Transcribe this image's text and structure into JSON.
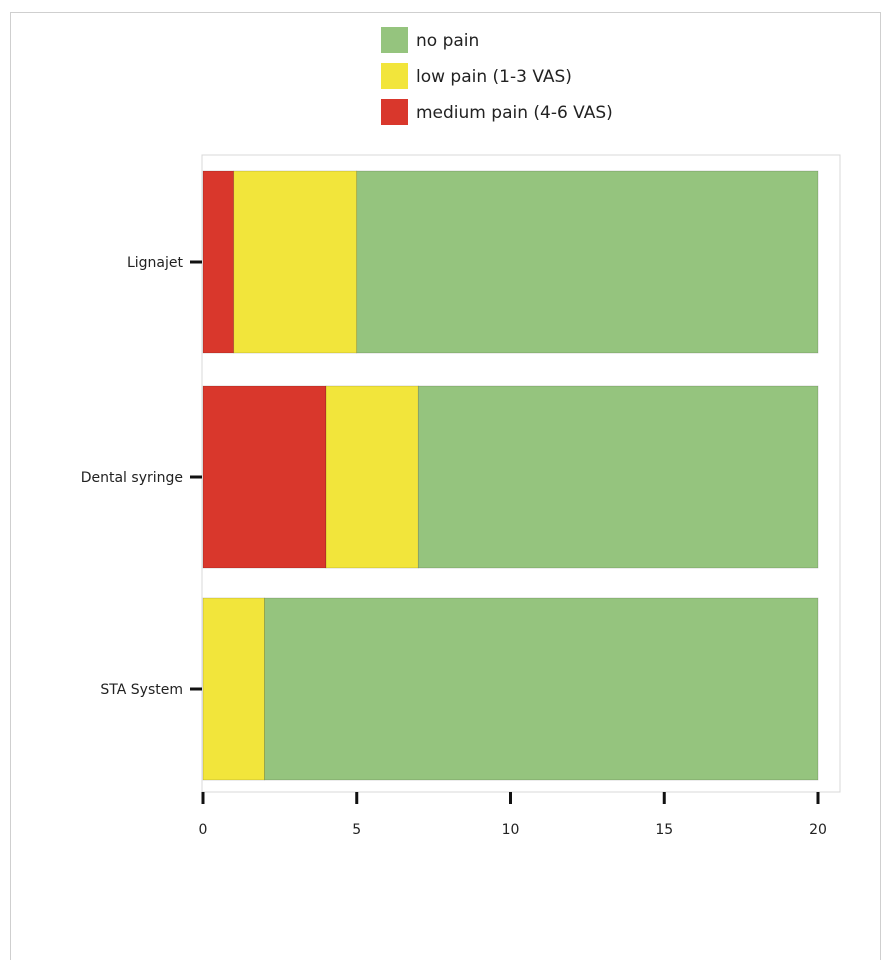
{
  "chart_data": {
    "type": "bar",
    "orientation": "horizontal",
    "stacked": true,
    "categories": [
      "Lignajet",
      "Dental syringe",
      "STA System"
    ],
    "series": [
      {
        "name": "medium pain (4-6 VAS)",
        "color": "#d9372c",
        "values": [
          1,
          4,
          0
        ]
      },
      {
        "name": "low pain (1-3 VAS)",
        "color": "#f2e53b",
        "values": [
          4,
          3,
          2
        ]
      },
      {
        "name": "no pain",
        "color": "#95c47e",
        "values": [
          15,
          13,
          18
        ]
      }
    ],
    "legend_order": [
      "no pain",
      "low pain (1-3 VAS)",
      "medium pain (4-6 VAS)"
    ],
    "xlim": [
      0,
      20
    ],
    "xticks": [
      0,
      5,
      10,
      15,
      20
    ],
    "legend_position": "top-center",
    "grid": false,
    "title": "",
    "xlabel": "",
    "ylabel": ""
  }
}
